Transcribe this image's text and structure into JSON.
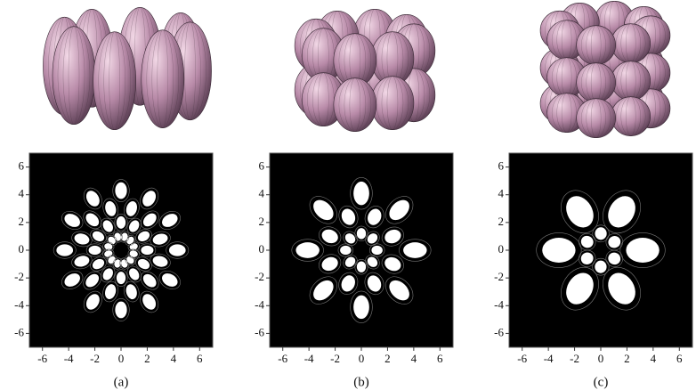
{
  "panels": [
    {
      "caption": "(a)",
      "xlim": [
        -7,
        7
      ],
      "ylim": [
        -7,
        7
      ],
      "xticks": [
        -6,
        -4,
        -2,
        0,
        2,
        4,
        6
      ],
      "yticks": [
        -6,
        -4,
        -2,
        0,
        2,
        4,
        6
      ]
    },
    {
      "caption": "(b)",
      "xlim": [
        -7,
        7
      ],
      "ylim": [
        -7,
        7
      ],
      "xticks": [
        -6,
        -4,
        -2,
        0,
        2,
        4,
        6
      ],
      "yticks": [
        -6,
        -4,
        -2,
        0,
        2,
        4,
        6
      ]
    },
    {
      "caption": "(c)",
      "xlim": [
        -7,
        7
      ],
      "ylim": [
        -7,
        7
      ],
      "xticks": [
        -6,
        -4,
        -2,
        0,
        2,
        4,
        6
      ],
      "yticks": [
        -6,
        -4,
        -2,
        0,
        2,
        4,
        6
      ]
    }
  ]
}
